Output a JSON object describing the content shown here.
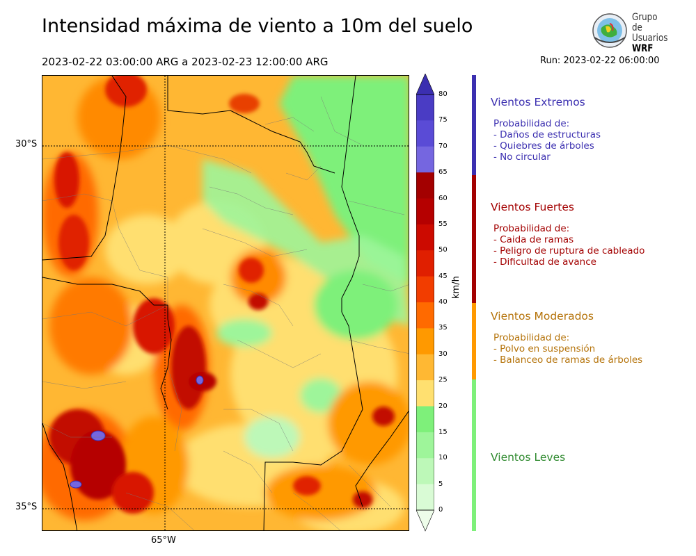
{
  "title": "Intensidad máxima de viento a 10m del suelo",
  "date_range": "2023-02-22 03:00:00 ARG  a  2023-02-23 12:00:00 ARG",
  "run": "Run: 2023-02-22 06:00:00",
  "logo": {
    "line1": "Grupo de",
    "line2": "Usuarios",
    "line3": "WRF"
  },
  "map": {
    "lat_labels": [
      "30°S",
      "35°S"
    ],
    "lon_labels": [
      "65°W"
    ]
  },
  "colorbar": {
    "unit": "km/h",
    "ticks": [
      "80",
      "75",
      "70",
      "65",
      "60",
      "55",
      "50",
      "45",
      "40",
      "35",
      "30",
      "25",
      "20",
      "15",
      "10",
      "5",
      "0"
    ],
    "colors": [
      "#3b2fb0",
      "#4a3cc4",
      "#5a4bd6",
      "#7566e0",
      "#a30000",
      "#b50000",
      "#cc0a00",
      "#e01f00",
      "#f23d00",
      "#ff6a00",
      "#ff9900",
      "#ffb833",
      "#ffe070",
      "#7ef07a",
      "#9ef59a",
      "#bdf8b8",
      "#d9fbd5",
      "#eefdea"
    ]
  },
  "categories": [
    {
      "name": "Vientos Extremos",
      "color": "#3b2fb0",
      "desc_header": "Probabilidad de:",
      "items": [
        "- Daños de estructuras",
        "- Quiebres de árboles",
        "- No circular"
      ]
    },
    {
      "name": "Vientos Fuertes",
      "color": "#a30000",
      "desc_header": "Probabilidad de:",
      "items": [
        "- Caida de ramas",
        "- Peligro de ruptura de cableado",
        "- Dificultad de avance"
      ]
    },
    {
      "name": "Vientos Moderados",
      "color": "#b5730a",
      "desc_header": "Probabilidad de:",
      "items": [
        "- Polvo en suspensión",
        "- Balanceo de ramas de árboles"
      ]
    },
    {
      "name": "Vientos Leves",
      "color": "#2f8a2f",
      "desc_header": "",
      "items": []
    }
  ]
}
